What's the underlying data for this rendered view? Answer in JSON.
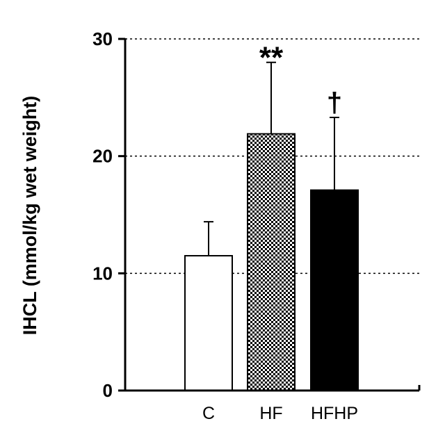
{
  "chart_data": {
    "type": "bar",
    "ylabel": "IHCL (mmol/kg wet weight)",
    "xlabel": "",
    "ylim": [
      0,
      30
    ],
    "yticks": [
      "0",
      "10",
      "20",
      "30"
    ],
    "grid": "horizontal dotted at 10, 20, 30",
    "categories": [
      "C",
      "HF",
      "HFHP"
    ],
    "values": [
      11.5,
      21.9,
      17.1
    ],
    "errors": [
      2.9,
      6.1,
      6.2
    ],
    "fills": [
      "white",
      "crosshatch",
      "black"
    ],
    "annotations": [
      "",
      "**",
      "†"
    ]
  }
}
